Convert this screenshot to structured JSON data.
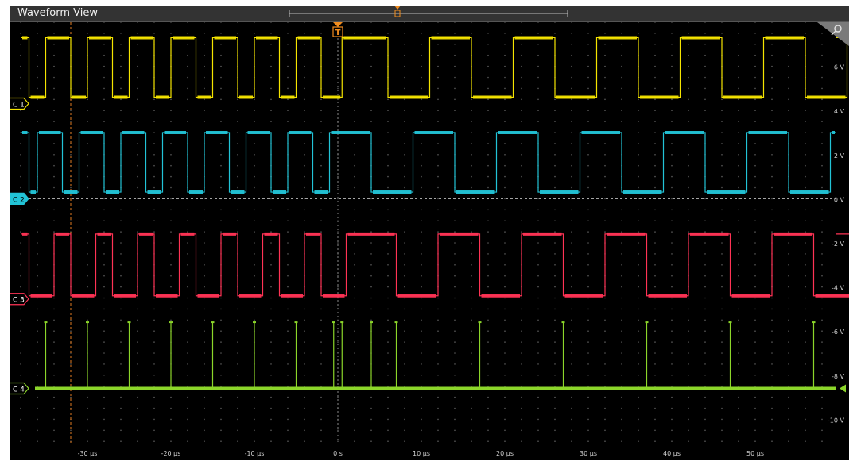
{
  "window": {
    "title": "Waveform View"
  },
  "trigger": {
    "marker_label": "T"
  },
  "colors": {
    "ch1": "#f5e400",
    "ch2": "#22c3d6",
    "ch3": "#ff3355",
    "ch4": "#8cd62a",
    "trigger": "#f28c1e",
    "grid": "#3a3a3a",
    "cursor": "#e07a1f"
  },
  "channels": [
    {
      "label": "C 1",
      "color_key": "ch1"
    },
    {
      "label": "C 2",
      "color_key": "ch2"
    },
    {
      "label": "C 3",
      "color_key": "ch3"
    },
    {
      "label": "C 4",
      "color_key": "ch4"
    }
  ],
  "chart_data": {
    "type": "line",
    "x_unit": "µs",
    "y_unit": "V",
    "x_ticks": [
      "-30 µs",
      "-20 µs",
      "-10 µs",
      "0 s",
      "10 µs",
      "20 µs",
      "30 µs",
      "40 µs",
      "50 µs"
    ],
    "y_ticks": [
      "6 V",
      "4 V",
      "2 V",
      "0 V",
      "-2 V",
      "-4 V",
      "-6 V",
      "-8 V",
      "-10 V"
    ],
    "xlim": [
      -38,
      62
    ],
    "ylim": [
      -11,
      8
    ],
    "cursors_us": [
      -37,
      -32
    ],
    "series": [
      {
        "name": "C 1",
        "high_V": 7.3,
        "low_V": 4.6,
        "edges_us": [
          -37,
          -35,
          -32,
          -30,
          -27,
          -25,
          -22,
          -20,
          -17,
          -15,
          -12,
          -10,
          -7,
          -5,
          -2,
          0.5,
          6,
          11,
          16,
          21,
          26,
          31,
          36,
          41,
          46,
          51,
          56,
          61
        ]
      },
      {
        "name": "C 2",
        "high_V": 3.0,
        "low_V": 0.3,
        "edges_us": [
          -37,
          -36,
          -33,
          -31,
          -28,
          -26,
          -23,
          -21,
          -18,
          -16,
          -13,
          -11,
          -8,
          -6,
          -3,
          -1,
          4,
          9,
          14,
          19,
          24,
          29,
          34,
          39,
          44,
          49,
          54,
          59
        ]
      },
      {
        "name": "C 3",
        "high_V": -1.6,
        "low_V": -4.4,
        "edges_us": [
          -37,
          -34,
          -32,
          -29,
          -27,
          -24,
          -22,
          -19,
          -17,
          -14,
          -12,
          -9,
          -7,
          -4,
          -2,
          1,
          7,
          12,
          17,
          22,
          27,
          32,
          37,
          42,
          47,
          52,
          57,
          62
        ]
      },
      {
        "name": "C 4",
        "base_V": -8.6,
        "pulse_V": -5.6,
        "pulses_us": [
          -35,
          -30,
          -25,
          -20,
          -15,
          -10,
          -5,
          -0.5,
          0.5,
          4,
          7,
          17,
          27,
          37,
          47,
          57
        ]
      }
    ]
  }
}
